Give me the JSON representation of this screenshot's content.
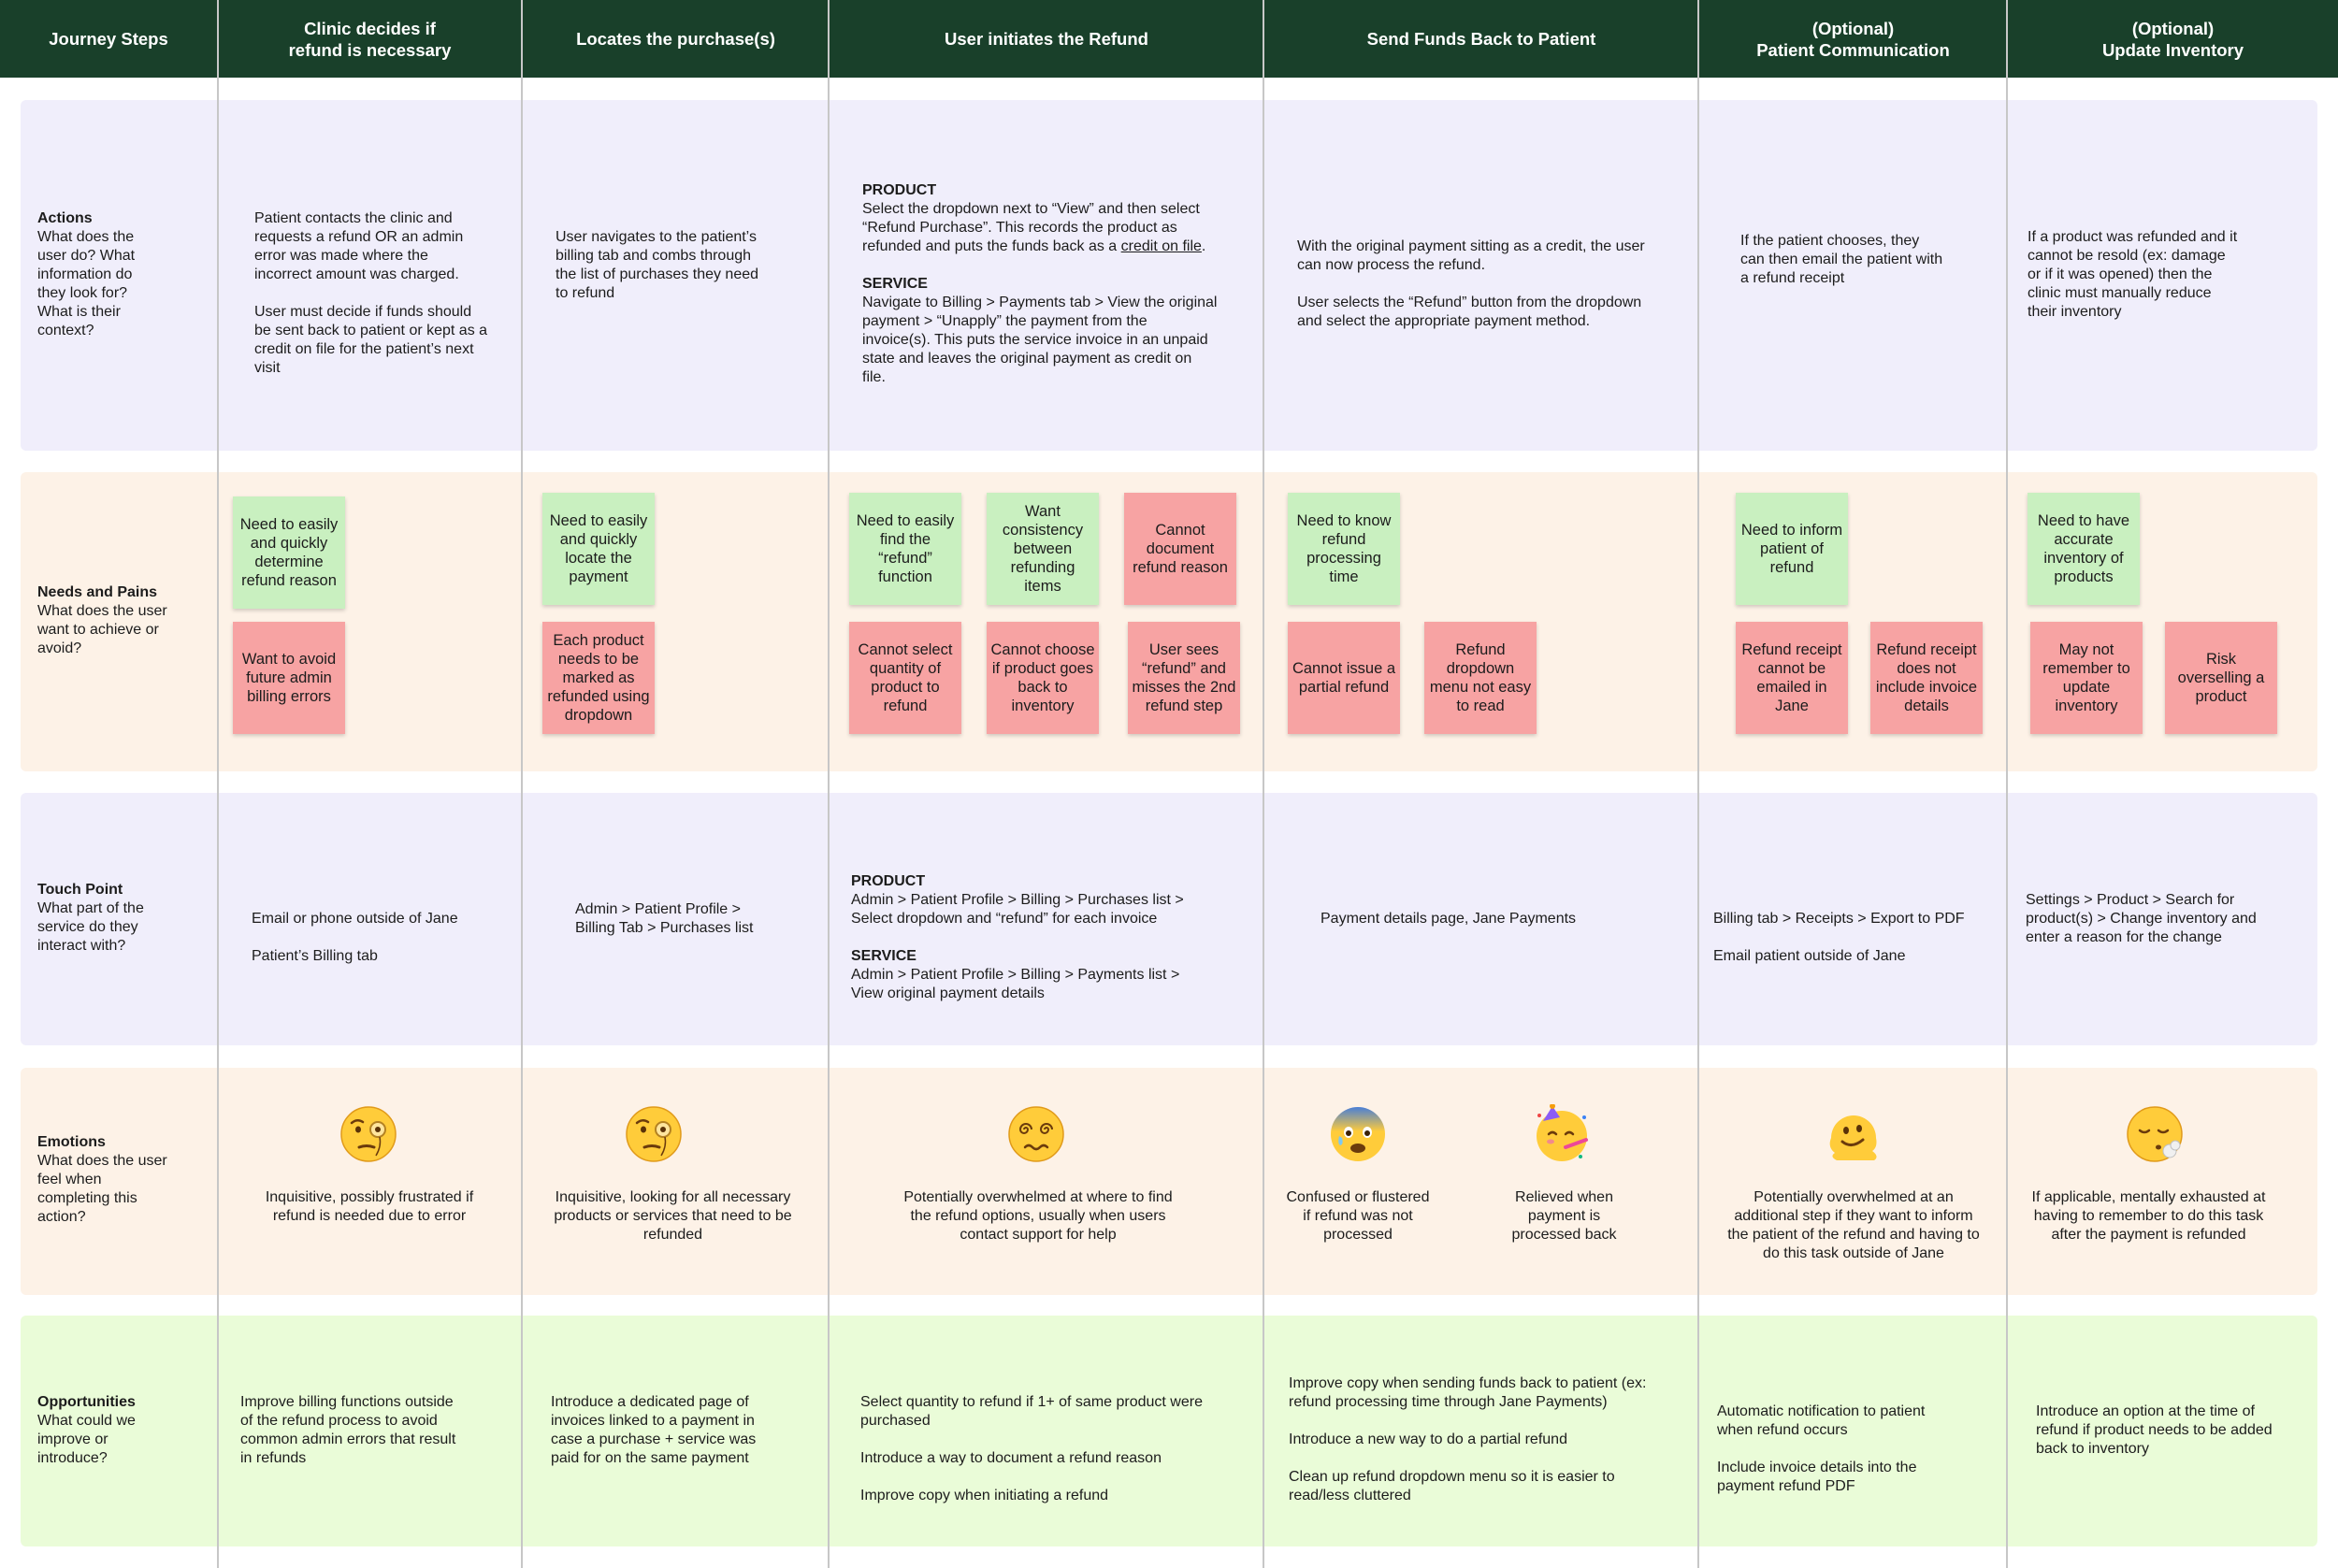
{
  "header": {
    "columns": [
      "Journey Steps",
      "Clinic decides if\nrefund is necessary",
      "Locates the purchase(s)",
      "User initiates the Refund",
      "Send Funds Back to Patient",
      "(Optional)\nPatient Communication",
      "(Optional)\nUpdate Inventory"
    ]
  },
  "rows": {
    "actions": {
      "title": "Actions",
      "question": "What does the user do? What information do they look for? What is their context?"
    },
    "needs": {
      "title": "Needs and Pains",
      "question": "What does the user want to achieve or avoid?"
    },
    "touch": {
      "title": "Touch Point",
      "question": "What part of the service do they interact with?"
    },
    "emotions": {
      "title": "Emotions",
      "question": "What does the user feel when completing this action?"
    },
    "opps": {
      "title": "Opportunities",
      "question": "What could we improve or introduce?"
    }
  },
  "actions": {
    "c1a": "Patient contacts the clinic and requests a refund OR an admin error was made where the incorrect amount was charged.",
    "c1b": "User must decide if funds should be sent back to patient or kept as a credit on file for the patient’s next visit",
    "c2": "User navigates to the patient’s billing tab and combs through the list of purchases they need to refund",
    "c3_product_label": "PRODUCT",
    "c3_product_text": "Select the dropdown next to “View” and then select “Refund Purchase”. This records the product as refunded and puts the funds back as a",
    "c3_product_link": "credit on file",
    "c3_product_end": ".",
    "c3_service_label": "SERVICE",
    "c3_service_text": "Navigate to Billing > Payments tab > View the original payment > “Unapply” the payment from the invoice(s). This puts the service invoice in an unpaid state and leaves the original payment as credit on file.",
    "c4a": "With the original payment sitting as a credit, the user can now process the refund.",
    "c4b": "User selects the “Refund” button from the dropdown and select the appropriate payment method.",
    "c5": "If the patient chooses, they can then email the patient with a refund receipt",
    "c6": "If a product was refunded and it cannot be resold (ex: damage or if it was opened) then the clinic must manually reduce their inventory"
  },
  "needs": {
    "s1": "Need to easily and quickly determine refund reason",
    "s2": "Want to avoid future admin billing errors",
    "s3": "Need to easily and quickly locate the payment",
    "s4": "Each product needs to be marked as refunded using dropdown",
    "s5": "Need to easily find the “refund” function",
    "s6": "Want consistency between refunding items",
    "s7": "Cannot document refund reason",
    "s8": "Cannot select quantity of product to refund",
    "s9": "Cannot choose if product goes back to inventory",
    "s10": "User sees “refund” and misses the 2nd refund step",
    "s11": "Need to know refund processing time",
    "s12": "Cannot issue a partial refund",
    "s13": "Refund dropdown menu not easy to read",
    "s14": "Need to inform patient of refund",
    "s15": "Refund receipt cannot be emailed in Jane",
    "s16": "Refund receipt does not include invoice details",
    "s17": "Need to have accurate inventory of products",
    "s18": "May not remember to update inventory",
    "s19": "Risk overselling a product"
  },
  "touch": {
    "c1a": "Email or phone outside of Jane",
    "c1b": "Patient’s Billing tab",
    "c2": "Admin > Patient Profile > Billing Tab > Purchases list",
    "c3_product_label": "PRODUCT",
    "c3_product_text": "Admin > Patient Profile > Billing > Purchases list > Select dropdown and “refund” for each invoice",
    "c3_service_label": "SERVICE",
    "c3_service_text": "Admin > Patient Profile > Billing > Payments list > View original payment details",
    "c4": "Payment details page, Jane Payments",
    "c5a": "Billing tab > Receipts > Export to PDF",
    "c5b": "Email patient outside of Jane",
    "c6": "Settings > Product > Search for product(s) > Change inventory and enter a reason for the change"
  },
  "emotions": {
    "e1_icon": "face-with-monocle-icon",
    "e1": "Inquisitive, possibly frustrated if refund is needed due to error",
    "e2_icon": "face-with-monocle-icon",
    "e2": "Inquisitive, looking for all necessary products or services that need to be refunded",
    "e3_icon": "face-with-spiral-eyes-icon",
    "e3": "Potentially overwhelmed at where to find the refund options, usually when users contact support for help",
    "e4_icon": "anxious-face-with-sweat-icon",
    "e4": "Confused or flustered if refund was not processed",
    "e5_icon": "partying-face-icon",
    "e5": "Relieved when payment is processed back",
    "e6_icon": "melting-face-icon",
    "e6": "Potentially overwhelmed at an additional step if they want to inform the patient of the refund and having to do this task outside of Jane",
    "e7_icon": "face-exhaling-icon",
    "e7": "If applicable, mentally exhausted at having to remember to do this task after the payment is refunded"
  },
  "opps": {
    "c1": "Improve billing functions outside of the refund process to avoid common admin errors that result in refunds",
    "c2": "Introduce a dedicated page of invoices linked to a payment in case a purchase + service was paid for on the same payment",
    "c3a": "Select quantity to refund if 1+ of same product were purchased",
    "c3b": "Introduce a way to document a refund reason",
    "c3c": "Improve copy when initiating a refund",
    "c4a": "Improve copy when sending funds back to patient (ex: refund processing time through Jane Payments)",
    "c4b": "Introduce a new way to do a partial refund",
    "c4c": "Clean up refund dropdown menu so it is easier to read/less cluttered",
    "c5a": "Automatic notification to patient when refund occurs",
    "c5b": "Include invoice details into the payment refund PDF",
    "c6": "Introduce an option at the time of refund if product needs to be added back to inventory"
  },
  "colors": {
    "header": "#19402a",
    "purple_band": "#f0eefb",
    "peach_band": "#fdf2e7",
    "green_band": "#eafcd8",
    "sticky_green": "#c9f0c0",
    "sticky_red": "#f7a3a3"
  }
}
